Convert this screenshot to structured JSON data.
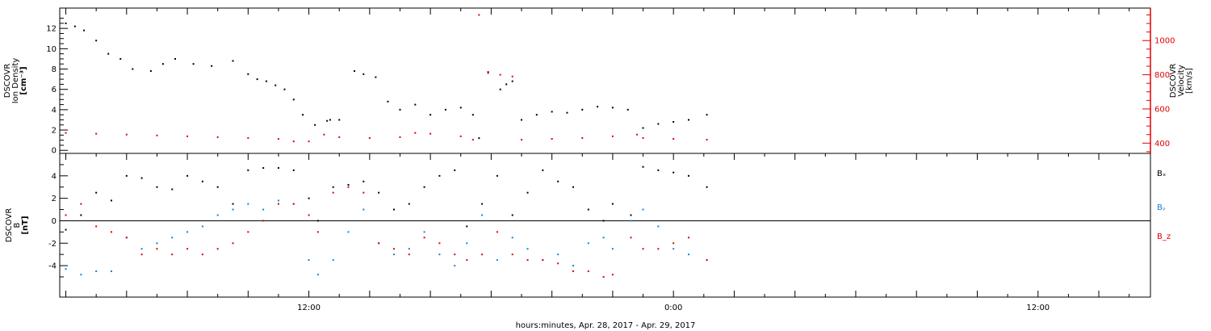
{
  "xlabel": "hours:minutes, Apr. 28, 2017 - Apr. 29, 2017",
  "colors": {
    "black": "#000000",
    "red": "#e00000",
    "blue": "#1a7fd0"
  },
  "chart_data": [
    {
      "type": "scatter",
      "panel": "top",
      "ylabel_left": [
        "DSCOVR",
        "Ion Density",
        "[cm⁻³]"
      ],
      "ylabel_right": [
        "DSCOVR",
        "Velocity",
        "[km/s]"
      ],
      "x_unit": "hours since 2017-04-28 00:00 UTC",
      "xlim": [
        3.8,
        39.7
      ],
      "x_tick_labels": [
        {
          "x": 12,
          "label": "12:00"
        },
        {
          "x": 24,
          "label": "0:00"
        },
        {
          "x": 36,
          "label": "12:00"
        }
      ],
      "ylim_left": [
        -0.3,
        14.0
      ],
      "ylim_right": [
        340,
        1190
      ],
      "y_ticks_left": [
        0,
        2,
        4,
        6,
        8,
        10,
        12
      ],
      "y_ticks_right": [
        400,
        600,
        800,
        1000
      ],
      "series": [
        {
          "name": "Ion Density",
          "color": "#000000",
          "axis": "left",
          "x": [
            4.0,
            4.3,
            4.6,
            5.0,
            5.4,
            5.8,
            6.2,
            6.8,
            7.2,
            7.6,
            8.2,
            8.8,
            9.5,
            10.0,
            10.3,
            10.6,
            10.9,
            11.2,
            11.5,
            11.8,
            12.2,
            12.6,
            12.7,
            13.0,
            13.5,
            13.8,
            14.2,
            14.6,
            15.0,
            15.5,
            16.0,
            16.5,
            17.0,
            17.4,
            17.6,
            17.9,
            18.3,
            18.5,
            18.7,
            19.0,
            19.5,
            20.0,
            20.5,
            21.0,
            21.5,
            22.0,
            22.5,
            23.0,
            23.5,
            24.0,
            24.5,
            25.1
          ],
          "y": [
            12.5,
            12.2,
            11.8,
            10.8,
            9.5,
            9.0,
            8.0,
            7.8,
            8.5,
            9.0,
            8.5,
            8.3,
            8.8,
            7.5,
            7.0,
            6.8,
            6.4,
            6.0,
            5.0,
            3.5,
            2.5,
            2.9,
            3.0,
            3.0,
            7.8,
            7.5,
            7.2,
            4.8,
            4.0,
            4.5,
            3.5,
            4.0,
            4.2,
            3.5,
            1.2,
            7.7,
            6.0,
            6.5,
            6.8,
            3.0,
            3.5,
            3.8,
            3.7,
            4.0,
            4.3,
            4.2,
            4.0,
            2.2,
            2.6,
            2.8,
            3.0,
            3.5
          ]
        },
        {
          "name": "Velocity",
          "color": "#e00000",
          "axis": "right",
          "x": [
            4.0,
            5.0,
            6.0,
            7.0,
            8.0,
            9.0,
            10.0,
            11.0,
            11.5,
            12.0,
            12.5,
            13.0,
            14.0,
            15.0,
            15.5,
            16.0,
            17.0,
            17.4,
            17.6,
            17.9,
            18.3,
            18.7,
            19.0,
            20.0,
            21.0,
            22.0,
            22.8,
            23.0,
            24.0,
            25.1
          ],
          "y": [
            460,
            455,
            450,
            445,
            440,
            435,
            430,
            425,
            410,
            410,
            450,
            435,
            430,
            435,
            460,
            455,
            440,
            420,
            1150,
            810,
            800,
            790,
            420,
            425,
            430,
            440,
            450,
            430,
            425,
            420
          ]
        }
      ]
    },
    {
      "type": "scatter",
      "panel": "bottom",
      "ylabel_left": [
        "DSCOVR",
        "B",
        "[nT]"
      ],
      "x_unit": "hours since 2017-04-28 00:00 UTC",
      "xlim": [
        3.8,
        39.7
      ],
      "ylim": [
        -6.8,
        6.0
      ],
      "y_ticks": [
        -4,
        -2,
        0,
        2,
        4
      ],
      "zero_line": true,
      "legend": [
        "Bₓ",
        "Bᵧ",
        "B_z"
      ],
      "legend_position": "right",
      "series": [
        {
          "name": "Bₓ",
          "color": "#000000",
          "x": [
            4.0,
            4.5,
            5.0,
            5.5,
            6.0,
            6.5,
            7.0,
            7.5,
            8.0,
            8.5,
            9.0,
            9.5,
            10.0,
            10.5,
            11.0,
            11.5,
            12.0,
            12.3,
            12.8,
            13.3,
            13.8,
            14.3,
            14.8,
            15.3,
            15.8,
            16.3,
            16.8,
            17.2,
            17.7,
            18.2,
            18.7,
            19.2,
            19.7,
            20.2,
            20.7,
            21.2,
            21.7,
            22.0,
            22.6,
            23.0,
            23.5,
            24.0,
            24.5,
            25.1
          ],
          "y": [
            -0.8,
            0.5,
            2.5,
            1.8,
            4.0,
            3.8,
            3.0,
            2.8,
            4.0,
            3.5,
            3.0,
            1.5,
            4.5,
            4.7,
            4.7,
            4.5,
            2.0,
            0.0,
            3.0,
            3.2,
            3.5,
            2.5,
            1.0,
            1.5,
            3.0,
            4.0,
            4.5,
            -0.5,
            1.5,
            4.0,
            0.5,
            2.5,
            4.5,
            3.5,
            3.0,
            1.0,
            0.0,
            1.5,
            0.5,
            4.8,
            4.5,
            4.3,
            4.0,
            3.0
          ]
        },
        {
          "name": "Bᵧ",
          "color": "#1a7fd0",
          "x": [
            4.0,
            4.5,
            5.0,
            5.5,
            6.0,
            6.5,
            7.0,
            7.5,
            8.0,
            8.5,
            9.0,
            9.5,
            10.0,
            10.5,
            11.0,
            11.5,
            12.0,
            12.3,
            12.8,
            13.3,
            13.8,
            14.3,
            14.8,
            15.3,
            15.8,
            16.3,
            16.8,
            17.2,
            17.7,
            18.2,
            18.7,
            19.2,
            19.7,
            20.2,
            20.7,
            21.2,
            21.7,
            22.0,
            22.6,
            23.0,
            23.5,
            24.0,
            24.5,
            25.1
          ],
          "y": [
            -4.3,
            -4.8,
            -4.5,
            -4.5,
            -1.5,
            -2.5,
            -2.0,
            -1.5,
            -1.0,
            -0.5,
            0.5,
            1.0,
            1.5,
            1.0,
            1.8,
            1.5,
            -3.5,
            -4.8,
            -3.5,
            -1.0,
            1.0,
            -2.0,
            -3.0,
            -2.5,
            -1.0,
            -3.0,
            -4.0,
            -2.0,
            0.5,
            -3.5,
            -1.5,
            -2.5,
            -3.5,
            -3.0,
            -4.0,
            -2.0,
            -1.5,
            -2.5,
            0.0,
            1.0,
            -0.5,
            -2.5,
            -3.0,
            -3.5
          ]
        },
        {
          "name": "B_z",
          "color": "#e00000",
          "x": [
            4.0,
            4.5,
            5.0,
            5.5,
            6.0,
            6.5,
            7.0,
            7.5,
            8.0,
            8.5,
            9.0,
            9.5,
            10.0,
            10.5,
            11.0,
            11.5,
            12.0,
            12.3,
            12.8,
            13.3,
            13.8,
            14.3,
            14.8,
            15.3,
            15.8,
            16.3,
            16.8,
            17.2,
            17.7,
            18.2,
            18.7,
            19.2,
            19.7,
            20.2,
            20.7,
            21.2,
            21.7,
            22.0,
            22.6,
            23.0,
            23.5,
            24.0,
            24.5,
            25.1
          ],
          "y": [
            0.5,
            1.5,
            -0.5,
            -1.0,
            -1.5,
            -3.0,
            -2.5,
            -3.0,
            -2.5,
            -3.0,
            -2.5,
            -2.0,
            -1.0,
            0.0,
            1.5,
            1.5,
            0.5,
            -1.0,
            2.5,
            3.0,
            2.5,
            -2.0,
            -2.5,
            -3.0,
            -1.5,
            -2.0,
            -3.0,
            -3.5,
            -3.0,
            -1.0,
            -3.0,
            -3.5,
            -3.5,
            -3.8,
            -4.5,
            -4.5,
            -5.0,
            -4.8,
            -1.5,
            -2.5,
            -2.5,
            -2.0,
            -1.5,
            -3.5
          ]
        }
      ]
    }
  ]
}
